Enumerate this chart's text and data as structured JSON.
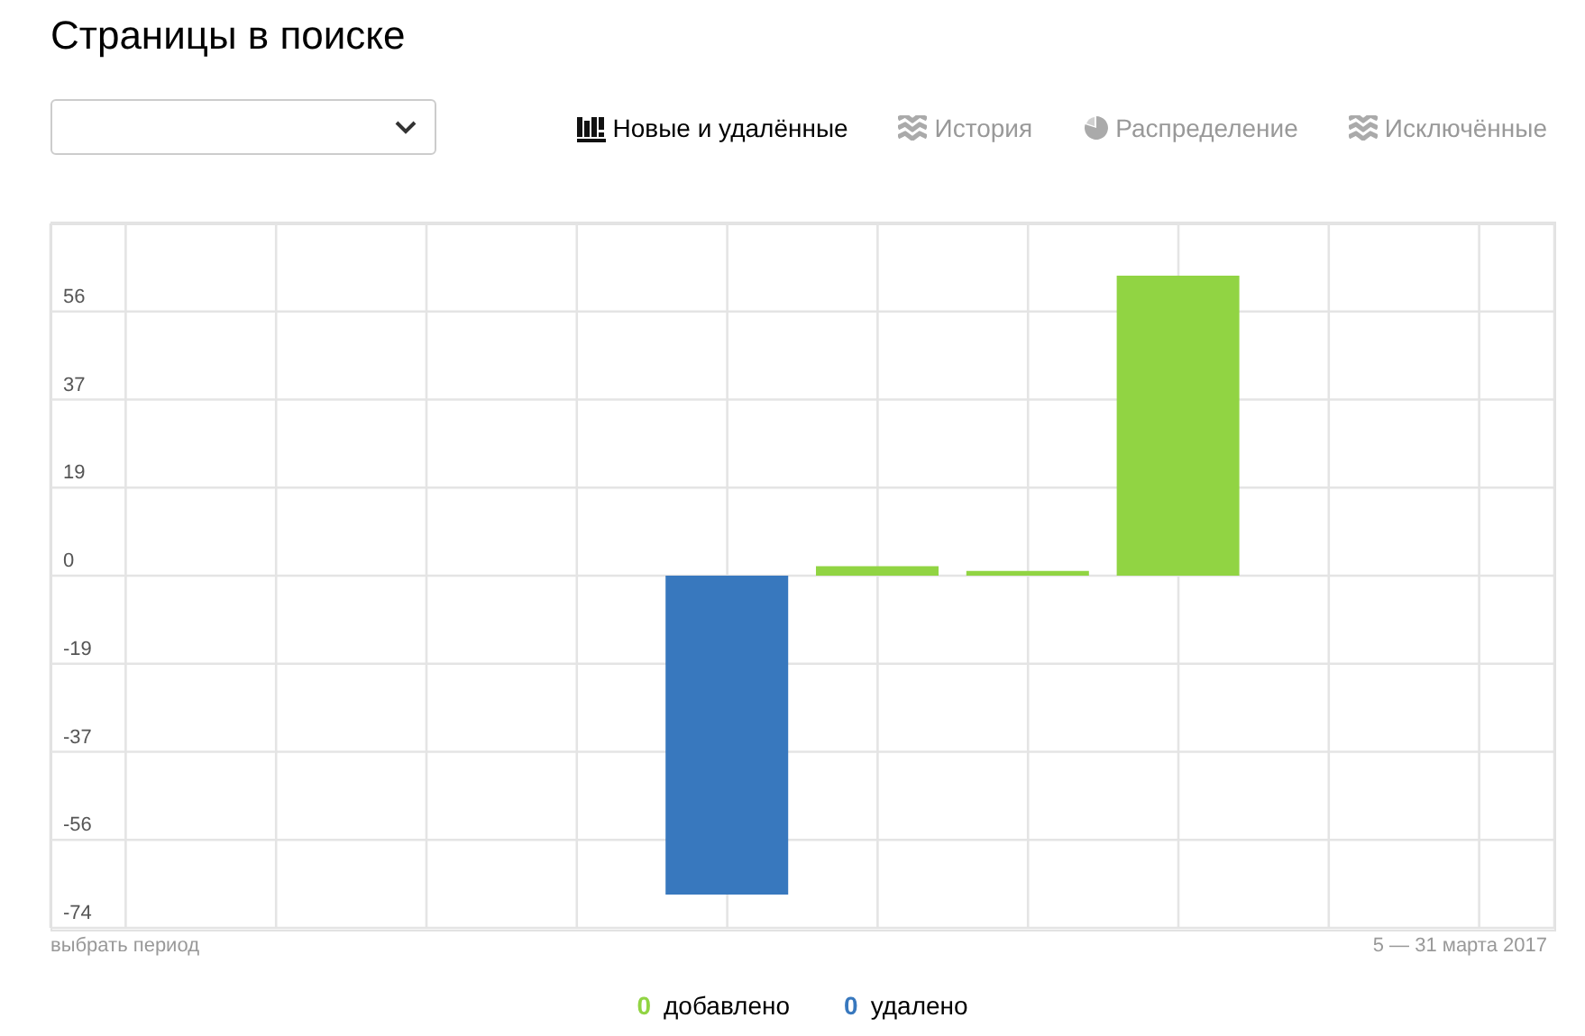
{
  "chart_data": {
    "type": "bar",
    "title": "Страницы в поиске",
    "categories": [
      null,
      null,
      null,
      null,
      null,
      null,
      null,
      null,
      null,
      null
    ],
    "series": [
      {
        "name": "0 добавлено",
        "color": "#91d443",
        "values": [
          null,
          null,
          null,
          null,
          null,
          2,
          1,
          63,
          null,
          null
        ]
      },
      {
        "name": "0 удалено",
        "color": "#3878be",
        "values": [
          null,
          null,
          null,
          null,
          -67,
          null,
          null,
          null,
          null,
          null
        ]
      }
    ],
    "stacked": true,
    "ylim": [
      -74,
      74
    ],
    "yticks": [
      -74,
      {
        "value": -55.5,
        "label": "-56"
      },
      -37,
      {
        "value": -18.5,
        "label": "-19"
      },
      0,
      {
        "value": 18.5,
        "label": "19"
      },
      37,
      {
        "value": 55.5,
        "label": "56"
      }
    ],
    "grid": true,
    "legend": "bottom",
    "annotations": [
      "Новые и удалённые",
      "История",
      "Распределение",
      "Исключённые",
      "выбрать период",
      "5 — 31 марта 2017"
    ]
  }
}
